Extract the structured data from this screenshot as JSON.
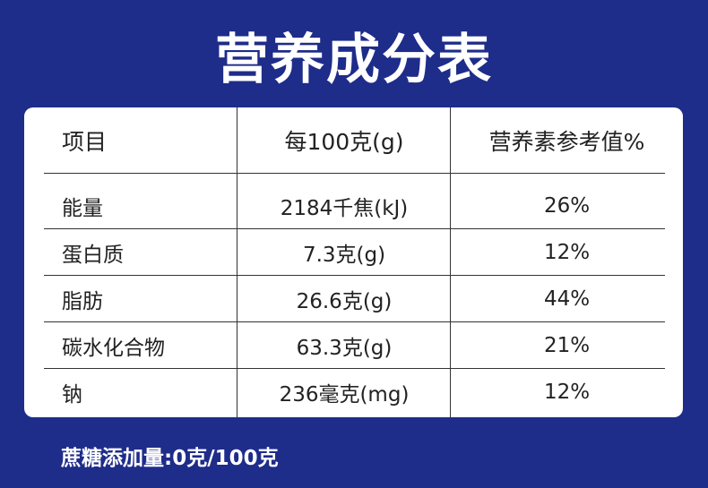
{
  "title": "营养成分表",
  "table": {
    "headers": [
      "项目",
      "每100克(g)",
      "营养素参考值%"
    ],
    "rows": [
      {
        "item": "能量",
        "amount": "2184千焦(kJ)",
        "nrv": "26%"
      },
      {
        "item": "蛋白质",
        "amount": "7.3克(g)",
        "nrv": "12%"
      },
      {
        "item": "脂肪",
        "amount": "26.6克(g)",
        "nrv": "44%"
      },
      {
        "item": "碳水化合物",
        "amount": "63.3克(g)",
        "nrv": "21%"
      },
      {
        "item": "钠",
        "amount": "236毫克(mg)",
        "nrv": "12%"
      }
    ]
  },
  "footnote": "蔗糖添加量:0克/100克",
  "colors": {
    "background": "#1e2c8a",
    "panel": "#ffffff",
    "text": "#222222"
  }
}
